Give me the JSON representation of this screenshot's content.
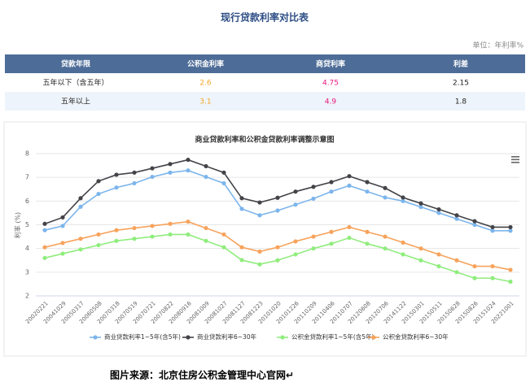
{
  "header": {
    "title": "现行贷款利率对比表",
    "unit": "单位：年利率%"
  },
  "table": {
    "columns": [
      "贷款年限",
      "公积金利率",
      "商贷利率",
      "利差"
    ],
    "rows": [
      [
        "五年以下（含五年）",
        2.6,
        4.75,
        2.15
      ],
      [
        "五年以上",
        3.1,
        4.9,
        1.8
      ]
    ]
  },
  "chart_data": {
    "type": "line",
    "title": "商业贷款利率和公积金贷款利率调整示意图",
    "y_label": "利率 (%)",
    "categories": [
      "20020221",
      "20041029",
      "20050317",
      "20060508",
      "20070318",
      "20070519",
      "20070721",
      "20070822",
      "20080916",
      "20081009",
      "20081027",
      "20081127",
      "20081223",
      "20101020",
      "20101226",
      "20110209",
      "20110406",
      "20110707",
      "20120608",
      "20120706",
      "20141122",
      "20150301",
      "20150511",
      "20150628",
      "20150826",
      "20151024",
      "20221001"
    ],
    "series": [
      {
        "name": "商业贷款利率1~5年(含5年)",
        "color": "#7cb5ec",
        "values": [
          4.77,
          4.95,
          5.76,
          6.3,
          6.57,
          6.75,
          7.02,
          7.2,
          7.29,
          7.02,
          6.75,
          5.67,
          5.4,
          5.6,
          5.85,
          6.1,
          6.4,
          6.65,
          6.4,
          6.15,
          6.0,
          5.75,
          5.5,
          5.25,
          5.0,
          4.75,
          4.75
        ]
      },
      {
        "name": "商业贷款利率6~30年",
        "color": "#434348",
        "values": [
          5.04,
          5.31,
          6.12,
          6.84,
          7.11,
          7.2,
          7.38,
          7.56,
          7.74,
          7.47,
          7.2,
          6.12,
          5.94,
          6.14,
          6.4,
          6.6,
          6.8,
          7.05,
          6.8,
          6.55,
          6.15,
          5.9,
          5.65,
          5.4,
          5.15,
          4.9,
          4.9
        ]
      },
      {
        "name": "公积金贷款利率1~5年(含5年)",
        "color": "#90ed7d",
        "values": [
          3.6,
          3.78,
          3.96,
          4.14,
          4.32,
          4.41,
          4.5,
          4.59,
          4.59,
          4.32,
          4.05,
          3.51,
          3.33,
          3.5,
          3.75,
          4.0,
          4.2,
          4.45,
          4.2,
          4.0,
          3.75,
          3.5,
          3.25,
          3.0,
          2.75,
          2.75,
          2.6
        ]
      },
      {
        "name": "公积金贷款利率6~30年",
        "color": "#f7a35c",
        "values": [
          4.05,
          4.23,
          4.41,
          4.59,
          4.77,
          4.86,
          4.95,
          5.04,
          5.13,
          4.86,
          4.59,
          4.05,
          3.87,
          4.05,
          4.3,
          4.5,
          4.7,
          4.9,
          4.7,
          4.5,
          4.25,
          4.0,
          3.75,
          3.5,
          3.25,
          3.25,
          3.1
        ]
      }
    ],
    "ylim": [
      2,
      8
    ],
    "yticks": [
      2,
      3,
      4,
      5,
      6,
      7,
      8
    ],
    "grid": true,
    "legend": "bottom"
  },
  "caption": "图片来源：北京住房公积金管理中心官网↵"
}
